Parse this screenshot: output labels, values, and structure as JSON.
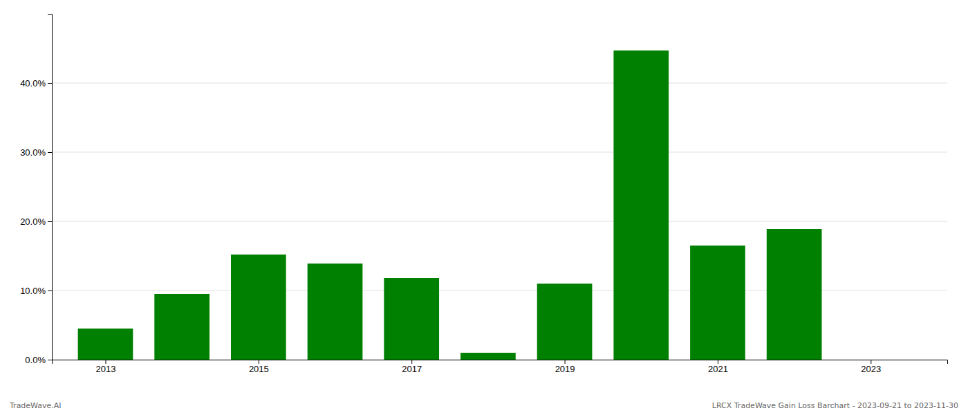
{
  "chart_data": {
    "type": "bar",
    "x": [
      2013,
      2014,
      2015,
      2016,
      2017,
      2018,
      2019,
      2020,
      2021,
      2022,
      2023
    ],
    "values": [
      0.045,
      0.095,
      0.152,
      0.139,
      0.118,
      0.01,
      0.11,
      0.447,
      0.165,
      0.189,
      null
    ],
    "color": "#008000",
    "xlim": [
      2012.3,
      2024.0
    ],
    "xticks": [
      2013,
      2015,
      2017,
      2019,
      2021,
      2023
    ],
    "ylim": [
      0,
      0.5
    ],
    "yticks": [
      {
        "value": 0.0,
        "label": "0.0%"
      },
      {
        "value": 0.1,
        "label": "10.0%"
      },
      {
        "value": 0.2,
        "label": "20.0%"
      },
      {
        "value": 0.3,
        "label": "30.0%"
      },
      {
        "value": 0.4,
        "label": "40.0%"
      }
    ],
    "grid": true,
    "annotations": [
      "TradeWave.AI",
      "LRCX TradeWave Gain Loss Barchart - 2023-09-21 to 2023-11-30"
    ]
  }
}
